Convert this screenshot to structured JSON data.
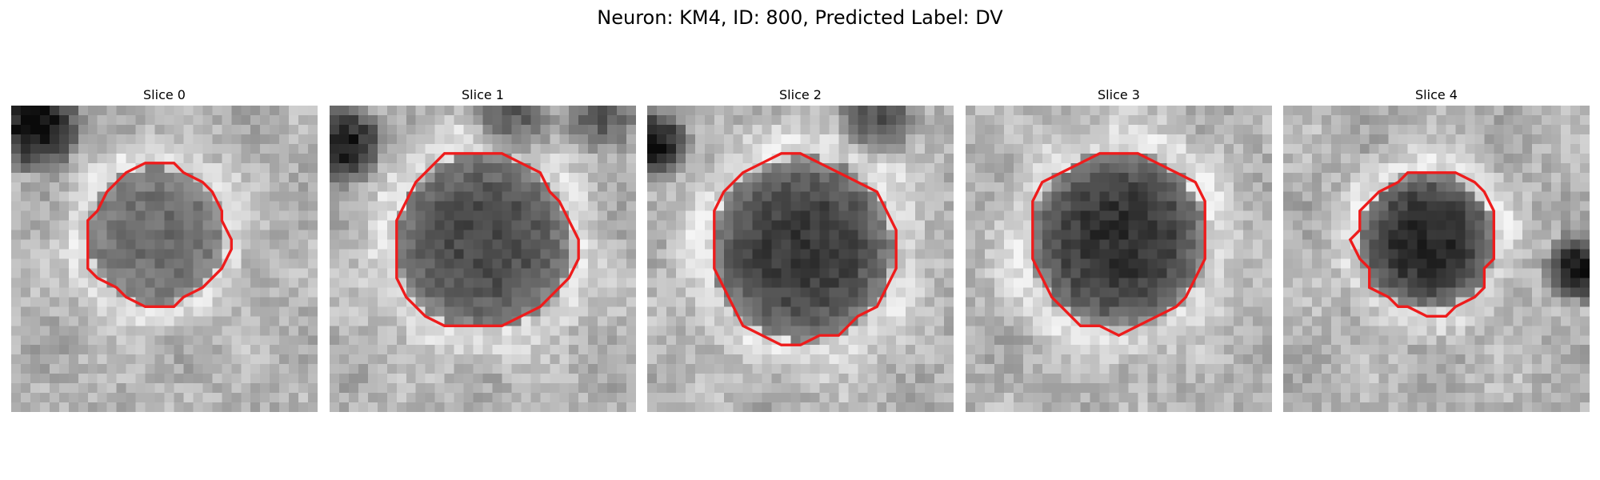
{
  "figure": {
    "title": "Neuron: KM4, ID: 800, Predicted Label: DV"
  },
  "panels": [
    {
      "title": "Slice 0"
    },
    {
      "title": "Slice 1"
    },
    {
      "title": "Slice 2"
    },
    {
      "title": "Slice 3"
    },
    {
      "title": "Slice 4"
    }
  ],
  "colors": {
    "contour": "#ee1c1c",
    "background": "#ffffff"
  }
}
